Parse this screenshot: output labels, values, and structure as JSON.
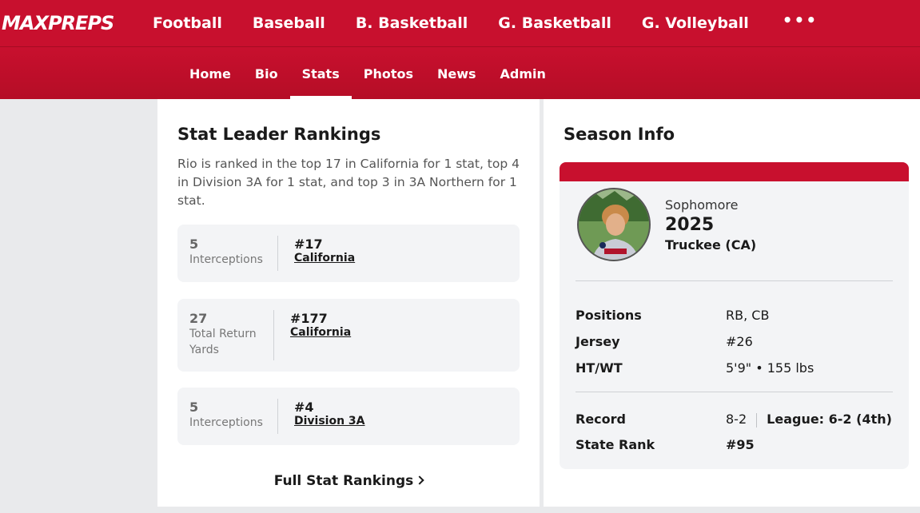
{
  "header": {
    "logo": "MAXPREPS",
    "sports": [
      "Football",
      "Baseball",
      "B. Basketball",
      "G. Basketball",
      "G. Volleyball"
    ],
    "more": "•••"
  },
  "subnav": {
    "tabs": [
      "Home",
      "Bio",
      "Stats",
      "Photos",
      "News",
      "Admin"
    ],
    "active": "Stats"
  },
  "stat_leader": {
    "title": "Stat Leader Rankings",
    "description": "Rio is ranked in the top 17 in California for 1 stat, top 4 in Division 3A for 1 stat, and top 3 in 3A Northern for 1 stat.",
    "rankings": [
      {
        "value": "5",
        "label": "Interceptions",
        "rank": "#17",
        "scope": "California"
      },
      {
        "value": "27",
        "label": "Total Return Yards",
        "rank": "#177",
        "scope": "California"
      },
      {
        "value": "5",
        "label": "Interceptions",
        "rank": "#4",
        "scope": "Division 3A"
      }
    ],
    "full_link": "Full Stat Rankings"
  },
  "season_info": {
    "title": "Season Info",
    "grade": "Sophomore",
    "year": "2025",
    "school": "Truckee (CA)",
    "rows": [
      {
        "label": "Positions",
        "value": "RB, CB"
      },
      {
        "label": "Jersey",
        "value": "#26"
      },
      {
        "label": "HT/WT",
        "value": "5'9\" • 155 lbs"
      }
    ],
    "record_label": "Record",
    "record_value": "8-2",
    "league": "League: 6-2 (4th)",
    "state_rank_label": "State Rank",
    "state_rank_value": "#95"
  }
}
